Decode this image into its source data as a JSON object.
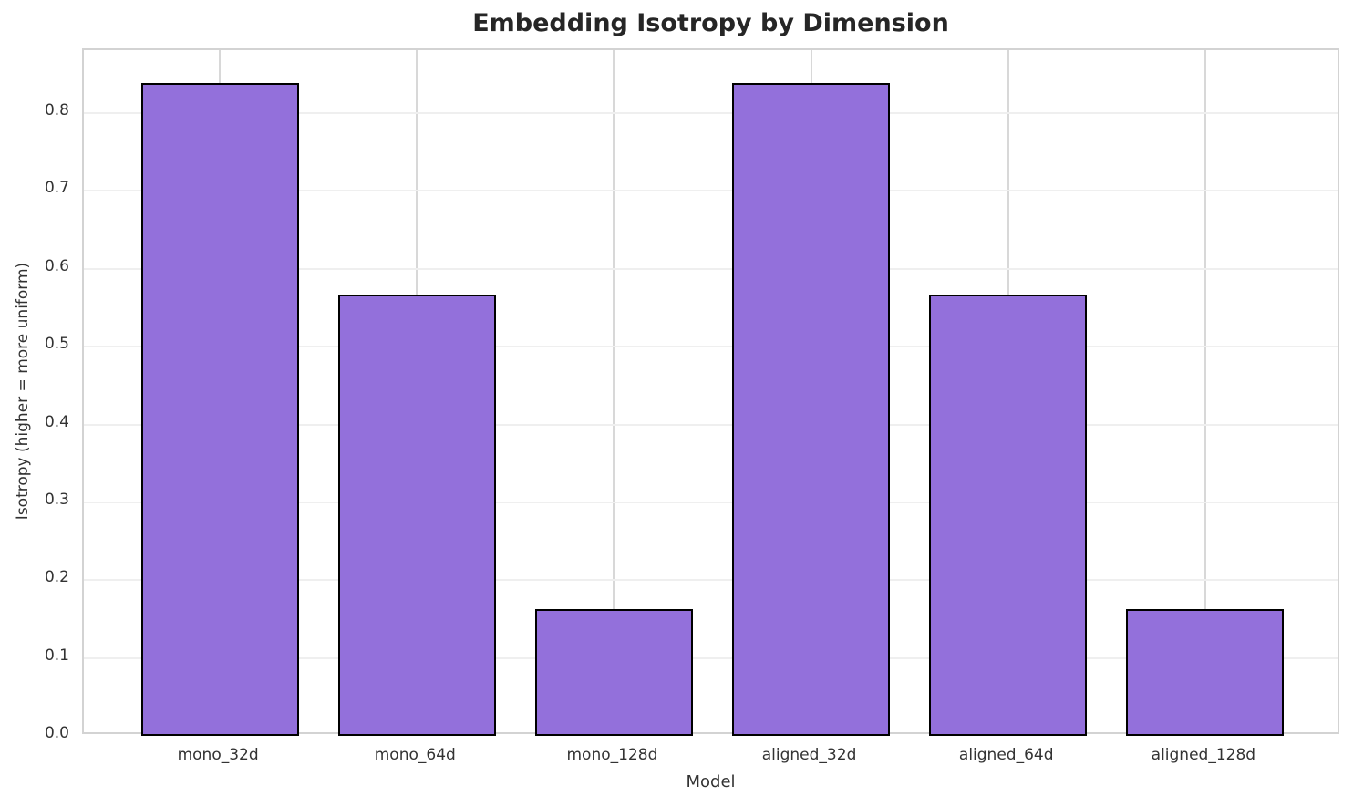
{
  "chart_data": {
    "type": "bar",
    "title": "Embedding Isotropy by Dimension",
    "xlabel": "Model",
    "ylabel": "Isotropy (higher = more uniform)",
    "categories": [
      "mono_32d",
      "mono_64d",
      "mono_128d",
      "aligned_32d",
      "aligned_64d",
      "aligned_128d"
    ],
    "values": [
      0.839,
      0.567,
      0.163,
      0.839,
      0.567,
      0.163
    ],
    "ylim": [
      0,
      0.881
    ],
    "yticks": [
      0.0,
      0.1,
      0.2,
      0.3,
      0.4,
      0.5,
      0.6,
      0.7,
      0.8
    ],
    "grid": "both",
    "legend_position": "none",
    "colors": {
      "bar_fill": "#9370DB",
      "bar_edge": "#000000",
      "h_grid": "#efefef",
      "v_grid": "#d8d8d8",
      "spine": "#d3d3d3",
      "tick_text": "#333333",
      "title_text": "#262626"
    }
  }
}
